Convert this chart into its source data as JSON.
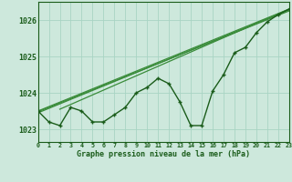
{
  "title": "Graphe pression niveau de la mer (hPa)",
  "background_color": "#cde8dc",
  "grid_color": "#a8d4c4",
  "line_color_main": "#1a5c1a",
  "line_color_light": "#3a8c3a",
  "xlim": [
    0,
    23
  ],
  "ylim": [
    1022.65,
    1026.5
  ],
  "yticks": [
    1023,
    1024,
    1025,
    1026
  ],
  "xticks": [
    0,
    1,
    2,
    3,
    4,
    5,
    6,
    7,
    8,
    9,
    10,
    11,
    12,
    13,
    14,
    15,
    16,
    17,
    18,
    19,
    20,
    21,
    22,
    23
  ],
  "series1": [
    1023.5,
    1023.2,
    1023.1,
    1023.6,
    1023.5,
    1023.2,
    1023.2,
    1023.4,
    1023.6,
    1024.0,
    1024.15,
    1024.4,
    1024.25,
    1023.75,
    1023.1,
    1023.1,
    1024.05,
    1024.5,
    1025.1,
    1025.25,
    1025.65,
    1025.95,
    1026.15,
    1026.3
  ],
  "ref_lines": [
    {
      "x": [
        0,
        23
      ],
      "y": [
        1023.5,
        1026.3
      ]
    },
    {
      "x": [
        0,
        23
      ],
      "y": [
        1023.45,
        1026.28
      ]
    },
    {
      "x": [
        0,
        23
      ],
      "y": [
        1023.48,
        1026.25
      ]
    },
    {
      "x": [
        2,
        23
      ],
      "y": [
        1023.55,
        1026.3
      ]
    }
  ]
}
